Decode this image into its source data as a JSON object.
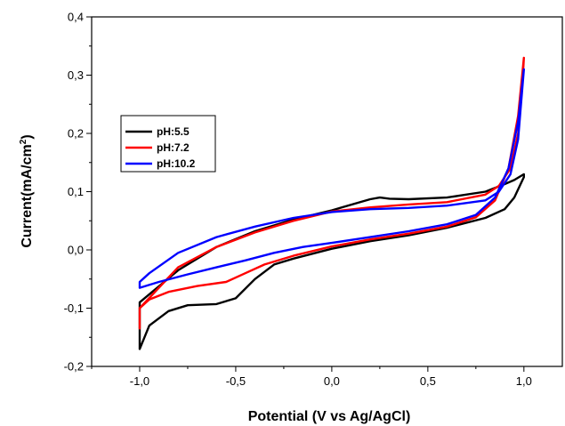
{
  "chart_data": {
    "type": "line",
    "title": "",
    "xlabel": "Potential (V vs Ag/AgCl)",
    "ylabel_main": "Current(mA/cm",
    "ylabel_sup": "2",
    "ylabel_tail": ")",
    "xlim": [
      -1.25,
      1.2
    ],
    "ylim": [
      -0.2,
      0.4
    ],
    "x_ticks": [
      -1.0,
      -0.5,
      0.0,
      0.5,
      1.0
    ],
    "x_tick_labels": [
      "-1,0",
      "-0,5",
      "0,0",
      "0,5",
      "1,0"
    ],
    "y_ticks": [
      -0.2,
      -0.1,
      0.0,
      0.1,
      0.2,
      0.3,
      0.4
    ],
    "y_tick_labels": [
      "-0,2",
      "-0,1",
      "0,0",
      "0,1",
      "0,2",
      "0,3",
      "0,4"
    ],
    "grid": false,
    "legend_position": "left",
    "series": [
      {
        "name": "pH:5.5",
        "color": "#000000",
        "x": [
          -1.0,
          -0.95,
          -0.85,
          -0.75,
          -0.6,
          -0.5,
          -0.4,
          -0.3,
          -0.2,
          0.0,
          0.2,
          0.4,
          0.6,
          0.8,
          0.9,
          0.95,
          1.0,
          1.0,
          0.95,
          0.9,
          0.8,
          0.6,
          0.4,
          0.3,
          0.25,
          0.2,
          0.0,
          -0.2,
          -0.4,
          -0.6,
          -0.8,
          -1.0,
          -1.0
        ],
        "y": [
          -0.17,
          -0.13,
          -0.105,
          -0.095,
          -0.093,
          -0.083,
          -0.05,
          -0.025,
          -0.015,
          0.002,
          0.015,
          0.025,
          0.038,
          0.055,
          0.07,
          0.09,
          0.125,
          0.13,
          0.12,
          0.113,
          0.1,
          0.09,
          0.087,
          0.088,
          0.09,
          0.087,
          0.068,
          0.052,
          0.032,
          0.005,
          -0.035,
          -0.09,
          -0.17
        ]
      },
      {
        "name": "pH:7.2",
        "color": "#ff0000",
        "x": [
          -1.0,
          -0.95,
          -0.85,
          -0.7,
          -0.55,
          -0.45,
          -0.35,
          -0.2,
          0.0,
          0.2,
          0.4,
          0.6,
          0.75,
          0.85,
          0.92,
          0.97,
          1.0,
          0.995,
          0.97,
          0.93,
          0.87,
          0.8,
          0.6,
          0.4,
          0.2,
          0.0,
          -0.2,
          -0.4,
          -0.6,
          -0.8,
          -1.0,
          -1.0
        ],
        "y": [
          -0.1,
          -0.085,
          -0.072,
          -0.062,
          -0.055,
          -0.04,
          -0.025,
          -0.01,
          0.006,
          0.018,
          0.028,
          0.04,
          0.056,
          0.085,
          0.14,
          0.23,
          0.33,
          0.3,
          0.2,
          0.14,
          0.11,
          0.095,
          0.082,
          0.078,
          0.073,
          0.066,
          0.05,
          0.03,
          0.005,
          -0.03,
          -0.1,
          -0.135
        ]
      },
      {
        "name": "pH:10.2",
        "color": "#0000ff",
        "x": [
          -1.0,
          -0.9,
          -0.75,
          -0.6,
          -0.45,
          -0.3,
          -0.15,
          0.0,
          0.2,
          0.4,
          0.6,
          0.75,
          0.85,
          0.92,
          0.97,
          1.0,
          0.995,
          0.97,
          0.93,
          0.87,
          0.8,
          0.6,
          0.4,
          0.2,
          0.0,
          -0.2,
          -0.4,
          -0.6,
          -0.8,
          -0.95,
          -1.0,
          -1.0
        ],
        "y": [
          -0.065,
          -0.055,
          -0.042,
          -0.03,
          -0.018,
          -0.005,
          0.005,
          0.012,
          0.022,
          0.032,
          0.044,
          0.06,
          0.09,
          0.14,
          0.22,
          0.31,
          0.29,
          0.19,
          0.13,
          0.1,
          0.085,
          0.076,
          0.072,
          0.07,
          0.065,
          0.055,
          0.04,
          0.022,
          -0.005,
          -0.04,
          -0.055,
          -0.065
        ]
      }
    ]
  }
}
